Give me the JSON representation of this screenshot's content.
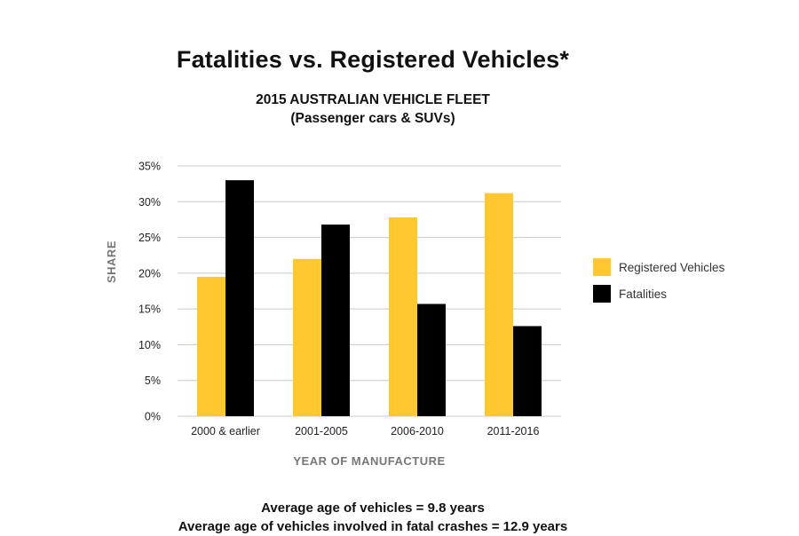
{
  "title": "Fatalities vs. Registered Vehicles*",
  "subtitle_line1": "2015 AUSTRALIAN VEHICLE FLEET",
  "subtitle_line2": "(Passenger cars & SUVs)",
  "footnote_line1": "Average age of vehicles = 9.8 years",
  "footnote_line2": "Average age of vehicles involved in fatal crashes = 12.9 years",
  "colors": {
    "registered": "#FFC82E",
    "fatalities": "#000000",
    "grid": "#C8C8C8"
  },
  "chart_data": {
    "type": "bar",
    "xlabel": "YEAR OF MANUFACTURE",
    "ylabel": "SHARE",
    "ylim": [
      0,
      35
    ],
    "yticks": [
      "0%",
      "5%",
      "10%",
      "15%",
      "20%",
      "25%",
      "30%",
      "35%"
    ],
    "categories": [
      "2000 & earlier",
      "2001-2005",
      "2006-2010",
      "2011-2016"
    ],
    "series": [
      {
        "name": "Registered Vehicles",
        "values": [
          19.5,
          22.0,
          27.8,
          31.2
        ]
      },
      {
        "name": "Fatalities",
        "values": [
          33.0,
          26.8,
          15.7,
          12.6
        ]
      }
    ],
    "grid": true,
    "legend": "right"
  }
}
